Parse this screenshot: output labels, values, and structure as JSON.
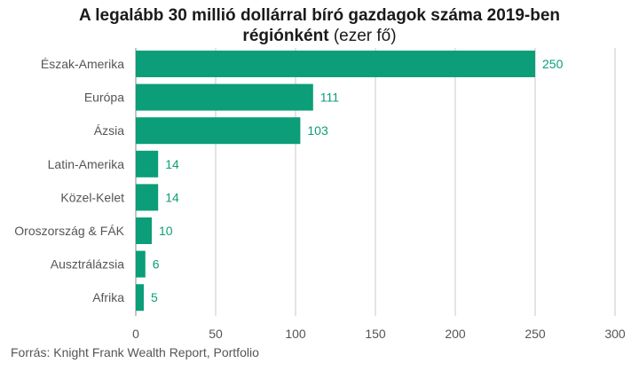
{
  "chart_data": {
    "type": "bar",
    "orientation": "horizontal",
    "title": "A legalább 30 millió dollárral bíró gazdagok száma 2019-ben",
    "title_line2": "régiónként",
    "subtitle": "(ezer fő)",
    "categories": [
      "Észak-Amerika",
      "Európa",
      "Ázsia",
      "Latin-Amerika",
      "Közel-Kelet",
      "Oroszország & FÁK",
      "Ausztrálázsia",
      "Afrika"
    ],
    "values": [
      250,
      111,
      103,
      14,
      14,
      10,
      6,
      5
    ],
    "xlim": [
      0,
      300
    ],
    "xticks": [
      0,
      50,
      100,
      150,
      200,
      250,
      300
    ],
    "grid": true,
    "bar_color": "#0b9e78",
    "label_color": "#0b9e78"
  },
  "source": "Forrás: Knight Frank Wealth Report, Portfolio"
}
